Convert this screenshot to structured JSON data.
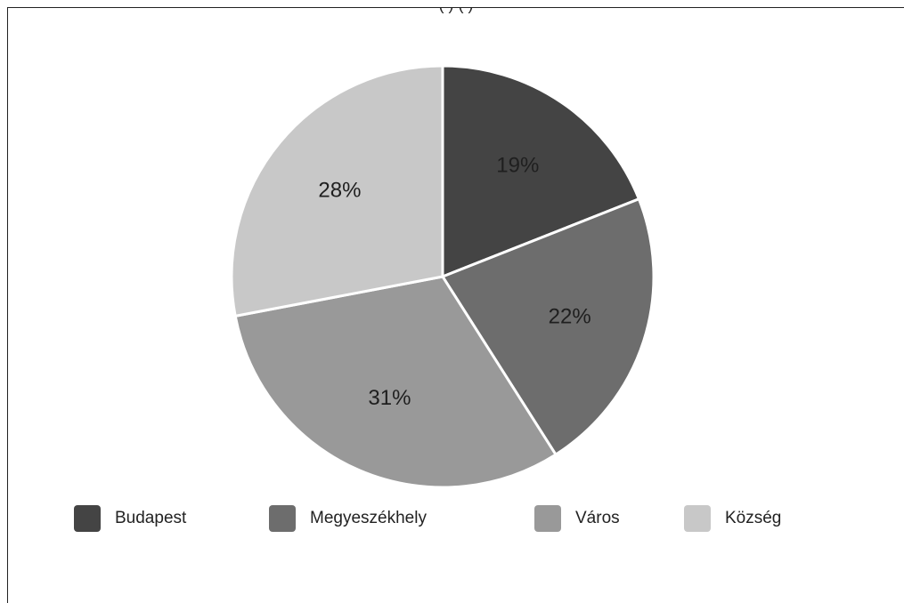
{
  "chart_data": {
    "type": "pie",
    "title_partial": "(          )  (                    )",
    "slices": [
      {
        "label": "Budapest",
        "value": 19,
        "display": "19%",
        "color": "#444444"
      },
      {
        "label": "Megyeszékhely",
        "value": 22,
        "display": "22%",
        "color": "#6d6d6d"
      },
      {
        "label": "Város",
        "value": 31,
        "display": "31%",
        "color": "#999999"
      },
      {
        "label": "Község",
        "value": 28,
        "display": "28%",
        "color": "#c8c8c8"
      }
    ],
    "legend_position": "bottom",
    "start_angle": "12 o'clock",
    "direction": "clockwise"
  }
}
